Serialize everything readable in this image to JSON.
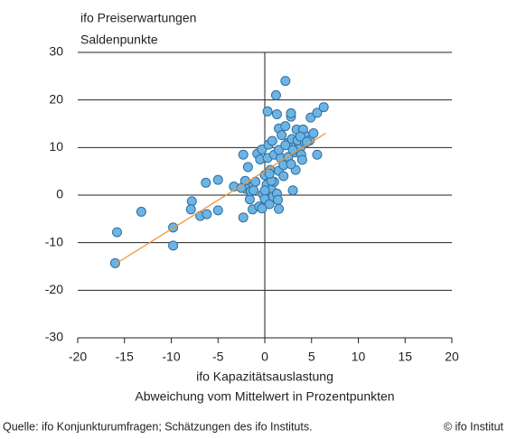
{
  "chart_data": {
    "type": "scatter",
    "ylabel": [
      "ifo Preiserwartungen",
      "Saldenpunkte"
    ],
    "xlabel": [
      "ifo Kapazitätsauslastung",
      "Abweichung vom Mittelwert in Prozentpunkten"
    ],
    "source": "Quelle: ifo Konjunkturumfragen; Schätzungen des ifo Instituts.",
    "copyright": "© ifo Institut",
    "xlim": [
      -20,
      20
    ],
    "xticks": [
      -20,
      -15,
      -10,
      -5,
      0,
      5,
      10,
      15,
      20
    ],
    "ylim": [
      -30,
      30
    ],
    "yticks": [
      -30,
      -20,
      -10,
      0,
      10,
      20,
      30
    ],
    "grid": true,
    "series": [
      {
        "color": "#6cb4e4",
        "edge": "#2f6f9f",
        "x": [
          -16,
          -15.8,
          -13.2,
          -9.8,
          -9.8,
          -7.8,
          -7.9,
          -6.9,
          -6.3,
          -6.2,
          -5,
          -5,
          -3.3,
          -2.3,
          -2.3,
          -2.1,
          -1.8,
          -1.6,
          -1.4,
          -1.3,
          -1,
          -0.8,
          -0.5,
          -0.3,
          -0.6,
          -0.2,
          0,
          0,
          0.2,
          0.3,
          0.4,
          0.3,
          0.5,
          0.7,
          0.9,
          0.6,
          0.8,
          1,
          1,
          1.3,
          1.2,
          1.3,
          1.5,
          1.5,
          1.5,
          1.7,
          2,
          2.2,
          2.2,
          2.5,
          2.5,
          2.8,
          2.8,
          2.9,
          3,
          3.2,
          3.3,
          3.4,
          3.6,
          3.8,
          3.9,
          4,
          4.1,
          4.5,
          4.8,
          4.9,
          5.2,
          5.6,
          5.6,
          6.3,
          -2,
          -1.5,
          2,
          2.8,
          1.5,
          3.5,
          4.3,
          0.7,
          -0.3,
          1.8,
          3.8,
          -2.5,
          1.4,
          -1.2,
          0,
          0.5,
          2.2,
          3,
          4.5
        ],
        "values": [
          -14.3,
          -7.8,
          -3.5,
          -6.8,
          -10.6,
          -1.3,
          -3,
          -4.4,
          2.6,
          -4,
          3.2,
          -3.2,
          1.8,
          8.5,
          -4.7,
          3,
          5.9,
          -0.9,
          1.7,
          -3,
          2.8,
          8.7,
          7.5,
          9.6,
          -2.4,
          0.2,
          4.2,
          -0.8,
          2.2,
          7.8,
          10.6,
          17.6,
          -1.9,
          1.2,
          -0.3,
          5.3,
          11.4,
          8.5,
          2.8,
          0.3,
          21,
          17,
          -2.9,
          5.1,
          14,
          7.8,
          6.3,
          24,
          14.5,
          11,
          8,
          16.5,
          17.2,
          11.8,
          1,
          9,
          5.3,
          13.8,
          11,
          10,
          8.5,
          7.4,
          13.8,
          12.3,
          11.5,
          16.3,
          13,
          8.5,
          17.3,
          18.5,
          1.3,
          0.8,
          4,
          6.5,
          9.5,
          11.5,
          11,
          3,
          -2.8,
          12.6,
          12.3,
          1.5,
          -1,
          1,
          1,
          4.5,
          10.5,
          9.5,
          11.2
        ]
      }
    ],
    "trendline": {
      "color": "#f0953a",
      "x": [
        -16,
        6.5
      ],
      "values": [
        -14.5,
        13
      ]
    }
  }
}
